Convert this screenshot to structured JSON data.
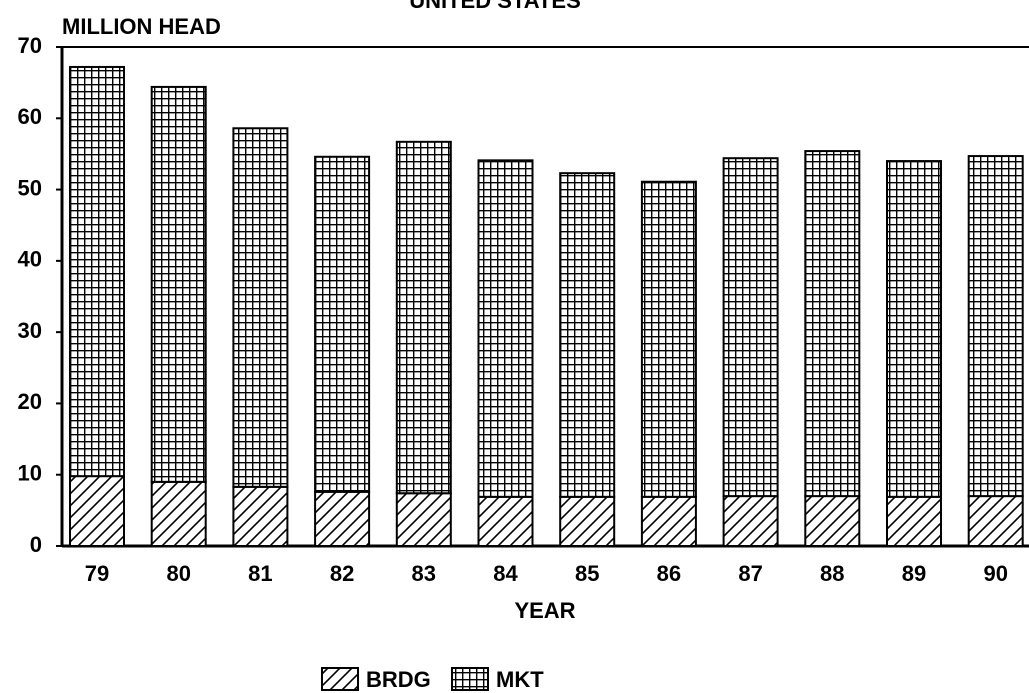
{
  "chart_data": {
    "type": "stacked_bar",
    "title": "UNITED STATES",
    "y_label": "MILLION HEAD",
    "x_label": "YEAR",
    "categories": [
      "79",
      "80",
      "81",
      "82",
      "83",
      "84",
      "85",
      "86",
      "87",
      "88",
      "89",
      "90"
    ],
    "series": [
      {
        "name": "BRDG",
        "color": "#000000",
        "pattern": "hatch",
        "values": [
          9.8,
          9.0,
          8.3,
          7.6,
          7.4,
          6.9,
          6.9,
          6.9,
          7.0,
          7.0,
          6.9,
          7.0
        ]
      },
      {
        "name": "MKT",
        "color": "#000000",
        "pattern": "grid",
        "values": [
          57.4,
          55.4,
          50.3,
          47.0,
          49.3,
          47.2,
          45.4,
          44.2,
          47.4,
          48.4,
          47.1,
          47.7
        ]
      }
    ],
    "ylim": [
      0,
      70
    ],
    "yticks": [
      0,
      10,
      20,
      30,
      40,
      50,
      60,
      70
    ],
    "grid": false
  }
}
